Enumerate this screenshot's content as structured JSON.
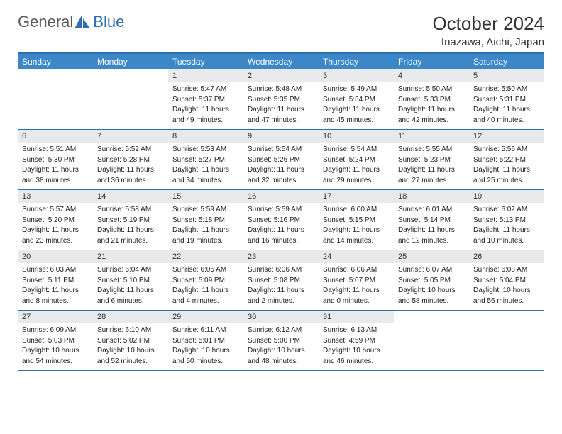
{
  "logo": {
    "text1": "General",
    "text2": "Blue",
    "icon_color": "#2f6fae"
  },
  "month_title": "October 2024",
  "location": "Inazawa, Aichi, Japan",
  "colors": {
    "header_bar": "#3b87c8",
    "header_text": "#ffffff",
    "daynum_bg": "#e7e9ea",
    "rule": "#2f6fae"
  },
  "weekdays": [
    "Sunday",
    "Monday",
    "Tuesday",
    "Wednesday",
    "Thursday",
    "Friday",
    "Saturday"
  ],
  "weeks": [
    [
      {
        "day": "",
        "lines": []
      },
      {
        "day": "",
        "lines": []
      },
      {
        "day": "1",
        "lines": [
          "Sunrise: 5:47 AM",
          "Sunset: 5:37 PM",
          "Daylight: 11 hours",
          "and 49 minutes."
        ]
      },
      {
        "day": "2",
        "lines": [
          "Sunrise: 5:48 AM",
          "Sunset: 5:35 PM",
          "Daylight: 11 hours",
          "and 47 minutes."
        ]
      },
      {
        "day": "3",
        "lines": [
          "Sunrise: 5:49 AM",
          "Sunset: 5:34 PM",
          "Daylight: 11 hours",
          "and 45 minutes."
        ]
      },
      {
        "day": "4",
        "lines": [
          "Sunrise: 5:50 AM",
          "Sunset: 5:33 PM",
          "Daylight: 11 hours",
          "and 42 minutes."
        ]
      },
      {
        "day": "5",
        "lines": [
          "Sunrise: 5:50 AM",
          "Sunset: 5:31 PM",
          "Daylight: 11 hours",
          "and 40 minutes."
        ]
      }
    ],
    [
      {
        "day": "6",
        "lines": [
          "Sunrise: 5:51 AM",
          "Sunset: 5:30 PM",
          "Daylight: 11 hours",
          "and 38 minutes."
        ]
      },
      {
        "day": "7",
        "lines": [
          "Sunrise: 5:52 AM",
          "Sunset: 5:28 PM",
          "Daylight: 11 hours",
          "and 36 minutes."
        ]
      },
      {
        "day": "8",
        "lines": [
          "Sunrise: 5:53 AM",
          "Sunset: 5:27 PM",
          "Daylight: 11 hours",
          "and 34 minutes."
        ]
      },
      {
        "day": "9",
        "lines": [
          "Sunrise: 5:54 AM",
          "Sunset: 5:26 PM",
          "Daylight: 11 hours",
          "and 32 minutes."
        ]
      },
      {
        "day": "10",
        "lines": [
          "Sunrise: 5:54 AM",
          "Sunset: 5:24 PM",
          "Daylight: 11 hours",
          "and 29 minutes."
        ]
      },
      {
        "day": "11",
        "lines": [
          "Sunrise: 5:55 AM",
          "Sunset: 5:23 PM",
          "Daylight: 11 hours",
          "and 27 minutes."
        ]
      },
      {
        "day": "12",
        "lines": [
          "Sunrise: 5:56 AM",
          "Sunset: 5:22 PM",
          "Daylight: 11 hours",
          "and 25 minutes."
        ]
      }
    ],
    [
      {
        "day": "13",
        "lines": [
          "Sunrise: 5:57 AM",
          "Sunset: 5:20 PM",
          "Daylight: 11 hours",
          "and 23 minutes."
        ]
      },
      {
        "day": "14",
        "lines": [
          "Sunrise: 5:58 AM",
          "Sunset: 5:19 PM",
          "Daylight: 11 hours",
          "and 21 minutes."
        ]
      },
      {
        "day": "15",
        "lines": [
          "Sunrise: 5:59 AM",
          "Sunset: 5:18 PM",
          "Daylight: 11 hours",
          "and 19 minutes."
        ]
      },
      {
        "day": "16",
        "lines": [
          "Sunrise: 5:59 AM",
          "Sunset: 5:16 PM",
          "Daylight: 11 hours",
          "and 16 minutes."
        ]
      },
      {
        "day": "17",
        "lines": [
          "Sunrise: 6:00 AM",
          "Sunset: 5:15 PM",
          "Daylight: 11 hours",
          "and 14 minutes."
        ]
      },
      {
        "day": "18",
        "lines": [
          "Sunrise: 6:01 AM",
          "Sunset: 5:14 PM",
          "Daylight: 11 hours",
          "and 12 minutes."
        ]
      },
      {
        "day": "19",
        "lines": [
          "Sunrise: 6:02 AM",
          "Sunset: 5:13 PM",
          "Daylight: 11 hours",
          "and 10 minutes."
        ]
      }
    ],
    [
      {
        "day": "20",
        "lines": [
          "Sunrise: 6:03 AM",
          "Sunset: 5:11 PM",
          "Daylight: 11 hours",
          "and 8 minutes."
        ]
      },
      {
        "day": "21",
        "lines": [
          "Sunrise: 6:04 AM",
          "Sunset: 5:10 PM",
          "Daylight: 11 hours",
          "and 6 minutes."
        ]
      },
      {
        "day": "22",
        "lines": [
          "Sunrise: 6:05 AM",
          "Sunset: 5:09 PM",
          "Daylight: 11 hours",
          "and 4 minutes."
        ]
      },
      {
        "day": "23",
        "lines": [
          "Sunrise: 6:06 AM",
          "Sunset: 5:08 PM",
          "Daylight: 11 hours",
          "and 2 minutes."
        ]
      },
      {
        "day": "24",
        "lines": [
          "Sunrise: 6:06 AM",
          "Sunset: 5:07 PM",
          "Daylight: 11 hours",
          "and 0 minutes."
        ]
      },
      {
        "day": "25",
        "lines": [
          "Sunrise: 6:07 AM",
          "Sunset: 5:05 PM",
          "Daylight: 10 hours",
          "and 58 minutes."
        ]
      },
      {
        "day": "26",
        "lines": [
          "Sunrise: 6:08 AM",
          "Sunset: 5:04 PM",
          "Daylight: 10 hours",
          "and 56 minutes."
        ]
      }
    ],
    [
      {
        "day": "27",
        "lines": [
          "Sunrise: 6:09 AM",
          "Sunset: 5:03 PM",
          "Daylight: 10 hours",
          "and 54 minutes."
        ]
      },
      {
        "day": "28",
        "lines": [
          "Sunrise: 6:10 AM",
          "Sunset: 5:02 PM",
          "Daylight: 10 hours",
          "and 52 minutes."
        ]
      },
      {
        "day": "29",
        "lines": [
          "Sunrise: 6:11 AM",
          "Sunset: 5:01 PM",
          "Daylight: 10 hours",
          "and 50 minutes."
        ]
      },
      {
        "day": "30",
        "lines": [
          "Sunrise: 6:12 AM",
          "Sunset: 5:00 PM",
          "Daylight: 10 hours",
          "and 48 minutes."
        ]
      },
      {
        "day": "31",
        "lines": [
          "Sunrise: 6:13 AM",
          "Sunset: 4:59 PM",
          "Daylight: 10 hours",
          "and 46 minutes."
        ]
      },
      {
        "day": "",
        "lines": []
      },
      {
        "day": "",
        "lines": []
      }
    ]
  ]
}
